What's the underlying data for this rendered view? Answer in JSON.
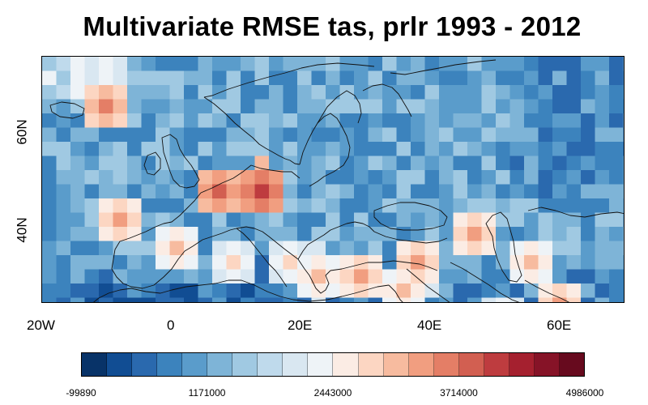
{
  "title": "Multivariate RMSE tas, prlr 1993 - 2012",
  "map": {
    "lon_range": [
      -20,
      70
    ],
    "lat_range": [
      25,
      75
    ],
    "lat_ticks": [
      {
        "value": 40,
        "label": "40N"
      },
      {
        "value": 60,
        "label": "60N"
      }
    ],
    "lon_ticks": [
      {
        "value": -20,
        "label": "20W"
      },
      {
        "value": 0,
        "label": "0"
      },
      {
        "value": 20,
        "label": "20E"
      },
      {
        "value": 40,
        "label": "40E"
      },
      {
        "value": 60,
        "label": "60E"
      }
    ]
  },
  "colorbar": {
    "colors": [
      "#083368",
      "#114d93",
      "#2a69ae",
      "#3c83bd",
      "#5a9ccb",
      "#7eb4d7",
      "#a0c9e2",
      "#bfdaec",
      "#d9e7f1",
      "#eef3f7",
      "#fbece4",
      "#fcd6c2",
      "#f7bb9f",
      "#f19e80",
      "#e47e66",
      "#d25f51",
      "#be3c3f",
      "#a5202f",
      "#861327",
      "#670a1e"
    ],
    "labels": [
      {
        "index": 0,
        "text": "-99890"
      },
      {
        "index": 5,
        "text": "1171000"
      },
      {
        "index": 10,
        "text": "2443000"
      },
      {
        "index": 15,
        "text": "3714000"
      },
      {
        "index": 20,
        "text": "4986000"
      }
    ]
  }
}
